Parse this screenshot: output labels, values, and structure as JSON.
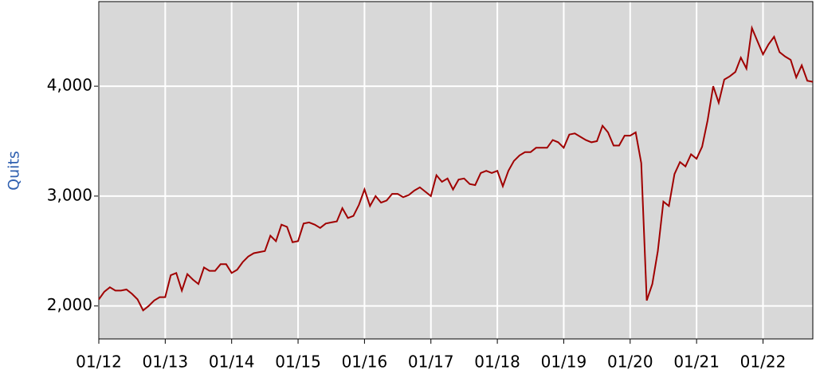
{
  "chart_data": {
    "type": "line",
    "y_label": "Quits",
    "x": [
      "2012-01",
      "2012-02",
      "2012-03",
      "2012-04",
      "2012-05",
      "2012-06",
      "2012-07",
      "2012-08",
      "2012-09",
      "2012-10",
      "2012-11",
      "2012-12",
      "2013-01",
      "2013-02",
      "2013-03",
      "2013-04",
      "2013-05",
      "2013-06",
      "2013-07",
      "2013-08",
      "2013-09",
      "2013-10",
      "2013-11",
      "2013-12",
      "2014-01",
      "2014-02",
      "2014-03",
      "2014-04",
      "2014-05",
      "2014-06",
      "2014-07",
      "2014-08",
      "2014-09",
      "2014-10",
      "2014-11",
      "2014-12",
      "2015-01",
      "2015-02",
      "2015-03",
      "2015-04",
      "2015-05",
      "2015-06",
      "2015-07",
      "2015-08",
      "2015-09",
      "2015-10",
      "2015-11",
      "2015-12",
      "2016-01",
      "2016-02",
      "2016-03",
      "2016-04",
      "2016-05",
      "2016-06",
      "2016-07",
      "2016-08",
      "2016-09",
      "2016-10",
      "2016-11",
      "2016-12",
      "2017-01",
      "2017-02",
      "2017-03",
      "2017-04",
      "2017-05",
      "2017-06",
      "2017-07",
      "2017-08",
      "2017-09",
      "2017-10",
      "2017-11",
      "2017-12",
      "2018-01",
      "2018-02",
      "2018-03",
      "2018-04",
      "2018-05",
      "2018-06",
      "2018-07",
      "2018-08",
      "2018-09",
      "2018-10",
      "2018-11",
      "2018-12",
      "2019-01",
      "2019-02",
      "2019-03",
      "2019-04",
      "2019-05",
      "2019-06",
      "2019-07",
      "2019-08",
      "2019-09",
      "2019-10",
      "2019-11",
      "2019-12",
      "2020-01",
      "2020-02",
      "2020-03",
      "2020-04",
      "2020-05",
      "2020-06",
      "2020-07",
      "2020-08",
      "2020-09",
      "2020-10",
      "2020-11",
      "2020-12",
      "2021-01",
      "2021-02",
      "2021-03",
      "2021-04",
      "2021-05",
      "2021-06",
      "2021-07",
      "2021-08",
      "2021-09",
      "2021-10",
      "2021-11",
      "2021-12",
      "2022-01",
      "2022-02",
      "2022-03",
      "2022-04",
      "2022-05",
      "2022-06",
      "2022-07",
      "2022-08",
      "2022-09",
      "2022-10"
    ],
    "values": [
      2060,
      2130,
      2170,
      2140,
      2140,
      2150,
      2110,
      2060,
      1960,
      2000,
      2050,
      2080,
      2080,
      2280,
      2300,
      2140,
      2290,
      2240,
      2200,
      2350,
      2320,
      2320,
      2380,
      2380,
      2300,
      2330,
      2400,
      2450,
      2480,
      2490,
      2500,
      2640,
      2590,
      2740,
      2720,
      2580,
      2590,
      2750,
      2760,
      2740,
      2710,
      2750,
      2760,
      2770,
      2890,
      2800,
      2820,
      2920,
      3060,
      2910,
      3000,
      2940,
      2960,
      3020,
      3020,
      2990,
      3010,
      3050,
      3080,
      3040,
      3000,
      3190,
      3130,
      3160,
      3060,
      3150,
      3160,
      3110,
      3100,
      3210,
      3230,
      3210,
      3230,
      3090,
      3230,
      3320,
      3370,
      3400,
      3400,
      3440,
      3440,
      3440,
      3510,
      3490,
      3440,
      3560,
      3570,
      3540,
      3510,
      3490,
      3500,
      3640,
      3580,
      3460,
      3460,
      3550,
      3550,
      3580,
      3300,
      2050,
      2200,
      2500,
      2950,
      2910,
      3200,
      3310,
      3270,
      3380,
      3340,
      3450,
      3690,
      4000,
      3850,
      4060,
      4090,
      4130,
      4260,
      4160,
      4530,
      4410,
      4290,
      4380,
      4450,
      4310,
      4270,
      4240,
      4080,
      4190,
      4050,
      4040
    ],
    "color": "#a00000",
    "xlim": [
      "2012-01",
      "2022-10"
    ],
    "xticks": [
      {
        "value": "2012-01",
        "label": "01/12"
      },
      {
        "value": "2013-01",
        "label": "01/13"
      },
      {
        "value": "2014-01",
        "label": "01/14"
      },
      {
        "value": "2015-01",
        "label": "01/15"
      },
      {
        "value": "2016-01",
        "label": "01/16"
      },
      {
        "value": "2017-01",
        "label": "01/17"
      },
      {
        "value": "2018-01",
        "label": "01/18"
      },
      {
        "value": "2019-01",
        "label": "01/19"
      },
      {
        "value": "2020-01",
        "label": "01/20"
      },
      {
        "value": "2021-01",
        "label": "01/21"
      },
      {
        "value": "2022-01",
        "label": "01/22"
      }
    ],
    "ylim": [
      1700,
      4770
    ],
    "yticks": [
      {
        "value": 2000,
        "label": "2,000"
      },
      {
        "value": 3000,
        "label": "3,000"
      },
      {
        "value": 4000,
        "label": "4,000"
      }
    ],
    "grid": true
  }
}
